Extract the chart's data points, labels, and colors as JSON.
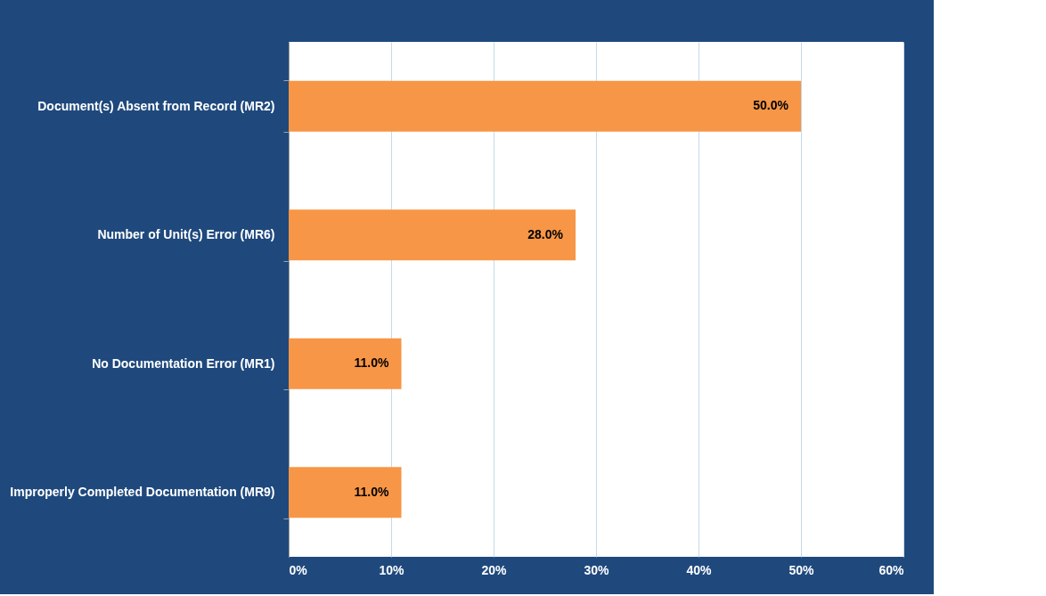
{
  "chart_data": {
    "type": "bar",
    "orientation": "horizontal",
    "categories": [
      "Document(s) Absent from Record (MR2)",
      "Number of Unit(s) Error (MR6)",
      "No Documentation Error (MR1)",
      "Improperly Completed Documentation (MR9)"
    ],
    "values": [
      50.0,
      28.0,
      11.0,
      11.0
    ],
    "value_labels": [
      "50.0%",
      "28.0%",
      "11.0%",
      "11.0%"
    ],
    "color": "#f79646",
    "xlim": [
      0,
      60
    ],
    "xticks": [
      {
        "value": 0,
        "label": "0%"
      },
      {
        "value": 10,
        "label": "10%"
      },
      {
        "value": 20,
        "label": "20%"
      },
      {
        "value": 30,
        "label": "30%"
      },
      {
        "value": 40,
        "label": "40%"
      },
      {
        "value": 50,
        "label": "50%"
      },
      {
        "value": 60,
        "label": "60%"
      }
    ],
    "grid": "x"
  }
}
